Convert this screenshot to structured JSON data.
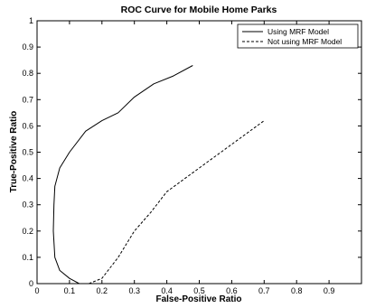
{
  "chart_data": {
    "type": "line",
    "title": "ROC Curve for Mobile Home Parks",
    "xlabel": "False-Positive Ratio",
    "ylabel": "True-Positive Ratio",
    "xlim": [
      0,
      1
    ],
    "ylim": [
      0,
      1
    ],
    "x_ticks": [
      "0",
      "0.1",
      "0.2",
      "0.3",
      "0.4",
      "0.5",
      "0.6",
      "0.7",
      "0.8",
      "0.9"
    ],
    "y_ticks": [
      "0",
      "0.1",
      "0.2",
      "0.3",
      "0.4",
      "0.5",
      "0.6",
      "0.7",
      "0.8",
      "0.9",
      "1"
    ],
    "grid": false,
    "legend_position": "top-right",
    "series": [
      {
        "name": "Using MRF Model",
        "line_style": "solid",
        "color": "#000000",
        "points": [
          [
            0.13,
            0.0
          ],
          [
            0.1,
            0.02
          ],
          [
            0.07,
            0.05
          ],
          [
            0.055,
            0.1
          ],
          [
            0.05,
            0.2
          ],
          [
            0.052,
            0.3
          ],
          [
            0.055,
            0.37
          ],
          [
            0.07,
            0.44
          ],
          [
            0.1,
            0.5
          ],
          [
            0.15,
            0.58
          ],
          [
            0.2,
            0.62
          ],
          [
            0.25,
            0.65
          ],
          [
            0.3,
            0.71
          ],
          [
            0.36,
            0.76
          ],
          [
            0.42,
            0.79
          ],
          [
            0.48,
            0.83
          ]
        ]
      },
      {
        "name": "Not using MRF Model",
        "line_style": "dashed",
        "color": "#000000",
        "points": [
          [
            0.16,
            0.0
          ],
          [
            0.2,
            0.02
          ],
          [
            0.25,
            0.1
          ],
          [
            0.3,
            0.2
          ],
          [
            0.35,
            0.27
          ],
          [
            0.4,
            0.35
          ],
          [
            0.5,
            0.44
          ],
          [
            0.6,
            0.53
          ],
          [
            0.7,
            0.62
          ]
        ]
      }
    ]
  }
}
